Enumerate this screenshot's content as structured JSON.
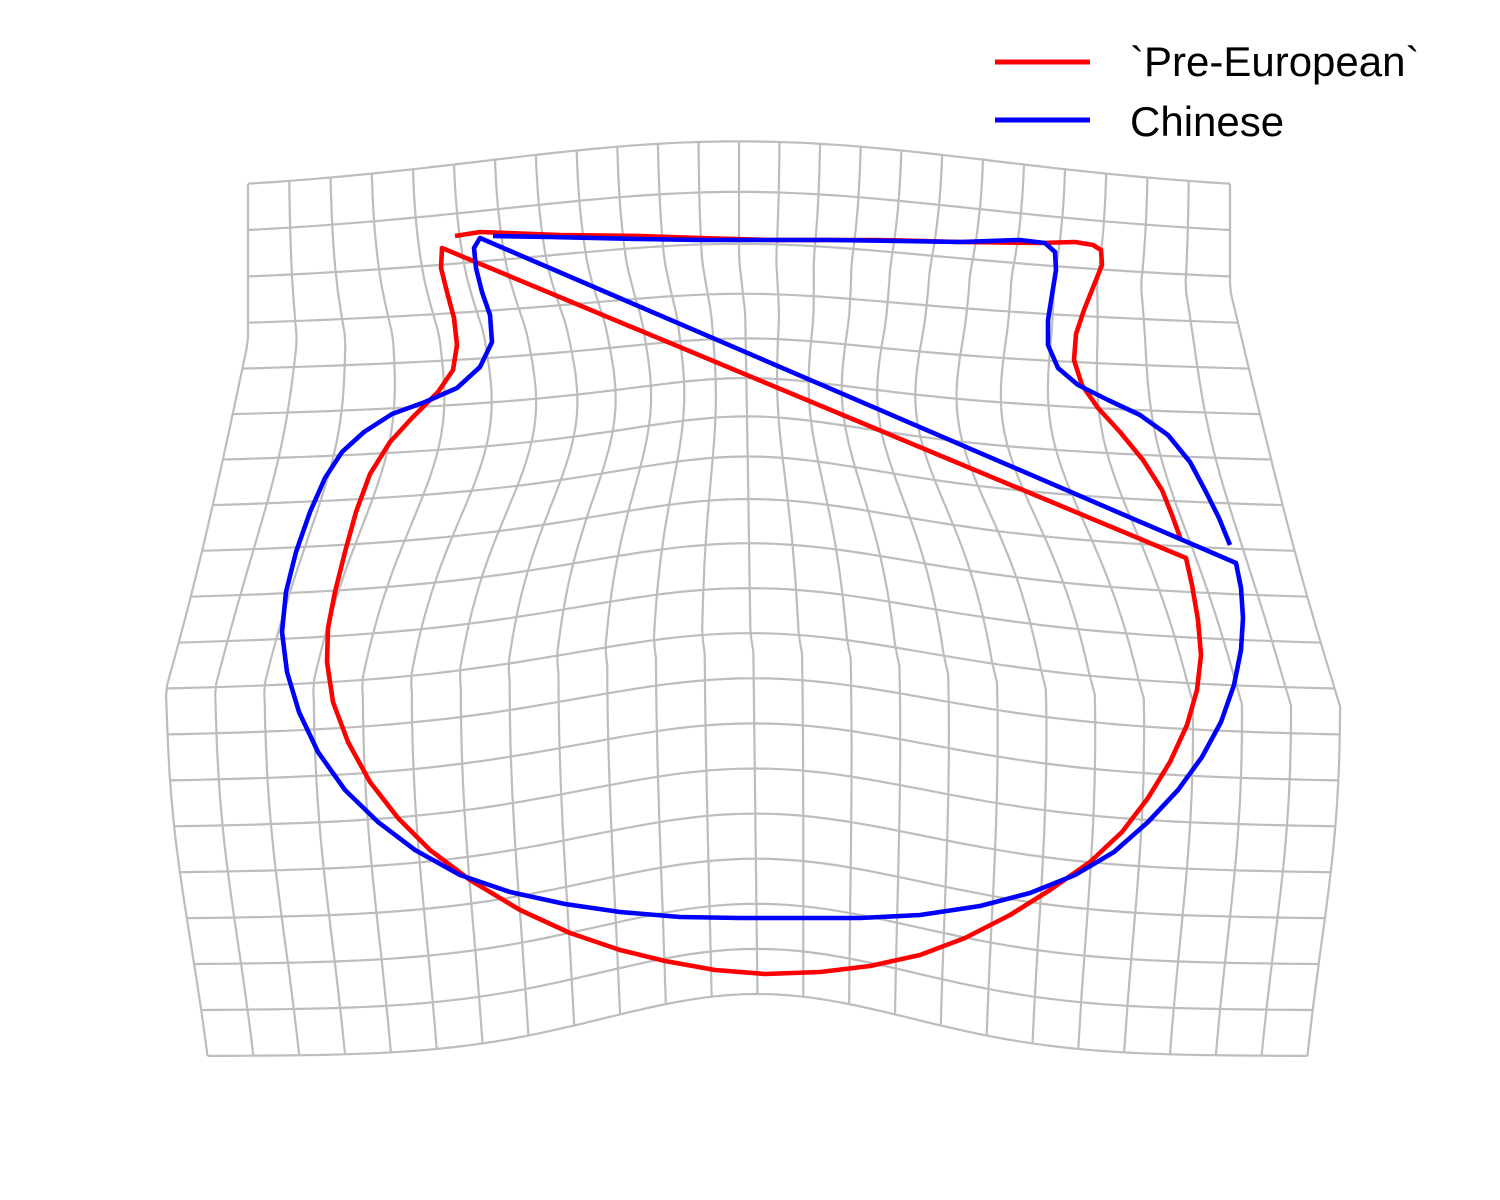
{
  "legend": {
    "entries": [
      {
        "label": "`Pre-European`",
        "color": "#ff0000"
      },
      {
        "label": "Chinese",
        "color": "#0000ff"
      }
    ]
  },
  "diagram": {
    "type": "thin-plate spline deformation grid with overlaid shape outlines",
    "grid": {
      "color": "#bdbdbd",
      "columns": 24,
      "rows": 19
    },
    "outlines": [
      {
        "name": "`Pre-European`",
        "color": "#ff0000"
      },
      {
        "name": "Chinese",
        "color": "#0000ff"
      }
    ]
  }
}
